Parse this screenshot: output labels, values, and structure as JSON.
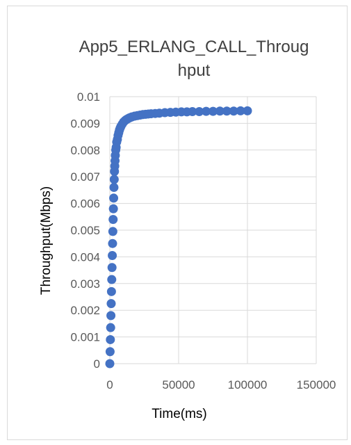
{
  "chart_data": {
    "type": "scatter",
    "title_lines": [
      "App5_ERLANG_CALL_Throug",
      "hput"
    ],
    "xlabel": "Time(ms)",
    "ylabel": "Throughput(Mbps)",
    "xlim": [
      0,
      150000
    ],
    "ylim": [
      0,
      0.01
    ],
    "x_ticks": [
      "0",
      "50000",
      "100000",
      "150000"
    ],
    "y_ticks": [
      "0",
      "0.001",
      "0.002",
      "0.003",
      "0.004",
      "0.005",
      "0.006",
      "0.007",
      "0.008",
      "0.009",
      "0.01"
    ],
    "grid": true,
    "legend": "none",
    "marker_color": "#4472C4",
    "series": [
      {
        "x": [
          0,
          200,
          400,
          600,
          800,
          1000,
          1200,
          1400,
          1600,
          1800,
          2000,
          2200,
          2400,
          2600,
          2800,
          3000,
          3200,
          3400,
          3600,
          3800,
          4000,
          4300,
          4600,
          5000,
          5500,
          6000,
          6500,
          7000,
          7500,
          8000,
          9000,
          10000,
          11000,
          12000,
          13000,
          14000,
          15000,
          16000,
          18000,
          20000,
          22000,
          24000,
          26000,
          28000,
          30000,
          33000,
          36000,
          40000,
          44000,
          48000,
          52000,
          56000,
          60000,
          65000,
          70000,
          75000,
          80000,
          85000,
          90000,
          95000,
          100000
        ],
        "y": [
          0,
          0.00045,
          0.0009,
          0.00135,
          0.0018,
          0.00225,
          0.0027,
          0.00315,
          0.0036,
          0.00405,
          0.0045,
          0.00495,
          0.0054,
          0.0058,
          0.0062,
          0.0066,
          0.0069,
          0.0072,
          0.0074,
          0.0076,
          0.0078,
          0.008,
          0.0081,
          0.0083,
          0.0084,
          0.00855,
          0.00865,
          0.00875,
          0.00882,
          0.00888,
          0.00897,
          0.00905,
          0.0091,
          0.00914,
          0.00917,
          0.0092,
          0.00922,
          0.00924,
          0.00927,
          0.00929,
          0.00931,
          0.00933,
          0.00934,
          0.00935,
          0.00936,
          0.00937,
          0.00938,
          0.0094,
          0.00941,
          0.00942,
          0.00943,
          0.00943,
          0.00944,
          0.00944,
          0.00945,
          0.00945,
          0.00946,
          0.00946,
          0.00946,
          0.00947,
          0.00947
        ]
      }
    ]
  }
}
